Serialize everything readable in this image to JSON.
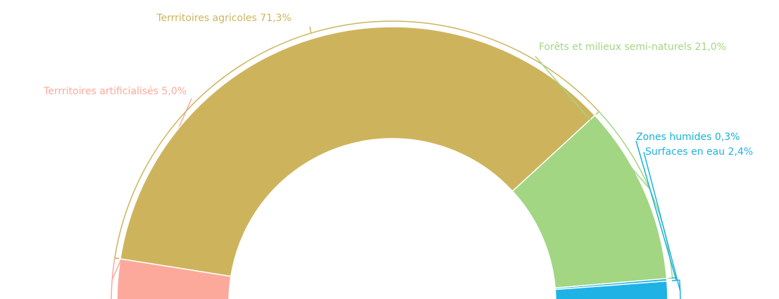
{
  "chart_data": {
    "type": "semi-donut",
    "categories": [
      "Terrritoires artificialisés",
      "Terrritoires agricoles",
      "Forêts et milieux semi-naturels",
      "Zones humides",
      "Surfaces en eau"
    ],
    "values": [
      5.0,
      71.3,
      21.0,
      0.3,
      2.4
    ],
    "value_labels": [
      "5,0%",
      "71,3%",
      "21,0%",
      "0,3%",
      "2,4%"
    ],
    "colors": [
      "#fca99c",
      "#cdb45c",
      "#a2d683",
      "#1fb3e5",
      "#1fb3e5"
    ],
    "label_colors": [
      "#fca99c",
      "#cdb45c",
      "#a2d683",
      "#13b3d6",
      "#1fb3e5"
    ]
  }
}
